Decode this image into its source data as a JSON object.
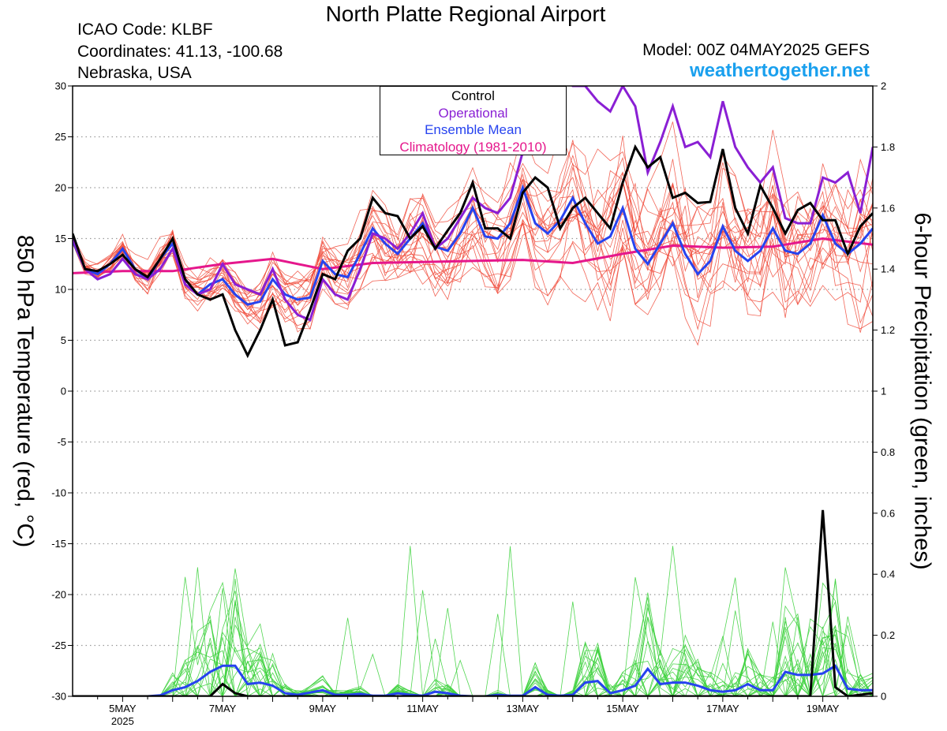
{
  "title": "North Platte Regional Airport",
  "station": {
    "icao": "ICAO Code: KLBF",
    "coordinates": "Coordinates: 41.13, -100.68",
    "region": "Nebraska, USA"
  },
  "model_run": "Model: 00Z 04MAY2025 GEFS",
  "website": "weathertogether.net",
  "chart_data": {
    "type": "line",
    "title": "North Platte Regional Airport",
    "x_unit": "days since 00Z 04MAY2025, 6-hour steps",
    "x_range": [
      0,
      16
    ],
    "x_tick_labels": [
      {
        "x": 1,
        "label": "5MAY",
        "sub": "2025"
      },
      {
        "x": 3,
        "label": "7MAY"
      },
      {
        "x": 5,
        "label": "9MAY"
      },
      {
        "x": 7,
        "label": "11MAY"
      },
      {
        "x": 9,
        "label": "13MAY"
      },
      {
        "x": 11,
        "label": "15MAY"
      },
      {
        "x": 13,
        "label": "17MAY"
      },
      {
        "x": 15,
        "label": "19MAY"
      }
    ],
    "y_left": {
      "label": "850 hPa Temperature (red, °C)",
      "range": [
        -30,
        30
      ],
      "ticks": [
        30,
        25,
        20,
        15,
        10,
        5,
        0,
        -5,
        -10,
        -15,
        -20,
        -25,
        -30
      ]
    },
    "y_right": {
      "label": "6-hour Precipitation (green, inches)",
      "range": [
        0,
        2
      ],
      "ticks": [
        2,
        1.8,
        1.6,
        1.4,
        1.2,
        1,
        0.8,
        0.6,
        0.4,
        0.2,
        0
      ]
    },
    "grid": "dotted horizontal",
    "legend": {
      "position": "top-center",
      "entries": [
        {
          "name": "Control",
          "color": "#000000"
        },
        {
          "name": "Operational",
          "color": "#8a1fd4"
        },
        {
          "name": "Ensemble Mean",
          "color": "#2643ef"
        },
        {
          "name": "Climatology (1981-2010)",
          "color": "#e5178c"
        }
      ]
    },
    "colors": {
      "members_temp": "#f04a3a",
      "members_precip": "#3ed23e",
      "control": "#000000",
      "operational": "#8a1fd4",
      "mean": "#2643ef",
      "climatology": "#e5178c"
    },
    "temperature": {
      "control": [
        [
          0.0,
          15.5
        ],
        [
          0.25,
          12
        ],
        [
          0.5,
          11.8
        ],
        [
          0.75,
          12.5
        ],
        [
          1.0,
          13.4
        ],
        [
          1.25,
          12
        ],
        [
          1.5,
          11.2
        ],
        [
          1.75,
          13
        ],
        [
          2.0,
          15
        ],
        [
          2.25,
          11
        ],
        [
          2.5,
          9.5
        ],
        [
          2.75,
          9
        ],
        [
          3.0,
          9.5
        ],
        [
          3.25,
          6
        ],
        [
          3.5,
          3.5
        ],
        [
          3.75,
          6
        ],
        [
          4.0,
          9
        ],
        [
          4.25,
          4.5
        ],
        [
          4.5,
          4.8
        ],
        [
          4.75,
          8
        ],
        [
          5.0,
          11.5
        ],
        [
          5.25,
          11
        ],
        [
          5.5,
          13.8
        ],
        [
          5.75,
          15
        ],
        [
          6.0,
          19
        ],
        [
          6.25,
          17.5
        ],
        [
          6.5,
          17.2
        ],
        [
          6.75,
          15
        ],
        [
          7.0,
          16.2
        ],
        [
          7.25,
          14
        ],
        [
          7.5,
          15.8
        ],
        [
          7.75,
          17.5
        ],
        [
          8.0,
          20.5
        ],
        [
          8.25,
          16
        ],
        [
          8.5,
          16
        ],
        [
          8.75,
          15
        ],
        [
          9.0,
          19.5
        ],
        [
          9.25,
          21
        ],
        [
          9.5,
          20
        ],
        [
          9.75,
          16
        ],
        [
          10.0,
          18
        ],
        [
          10.25,
          19
        ],
        [
          10.5,
          17.5
        ],
        [
          10.75,
          16
        ],
        [
          11.0,
          20.5
        ],
        [
          11.25,
          24
        ],
        [
          11.5,
          22
        ],
        [
          11.75,
          23
        ],
        [
          12.0,
          19
        ],
        [
          12.25,
          19.5
        ],
        [
          12.5,
          18.5
        ],
        [
          12.75,
          18.6
        ],
        [
          13.0,
          23.8
        ],
        [
          13.25,
          18
        ],
        [
          13.5,
          15.5
        ],
        [
          13.75,
          20.2
        ],
        [
          14.0,
          18
        ],
        [
          14.25,
          15.5
        ],
        [
          14.5,
          17.8
        ],
        [
          14.75,
          18.5
        ],
        [
          15.0,
          16.8
        ],
        [
          15.25,
          16.8
        ],
        [
          15.5,
          13.5
        ],
        [
          15.75,
          16.2
        ],
        [
          16.0,
          17.5
        ]
      ],
      "operational": [
        [
          0.0,
          15
        ],
        [
          0.25,
          12
        ],
        [
          0.5,
          11
        ],
        [
          0.75,
          11.5
        ],
        [
          1.0,
          13
        ],
        [
          1.25,
          11.5
        ],
        [
          1.5,
          11
        ],
        [
          1.75,
          12
        ],
        [
          2.0,
          14
        ],
        [
          2.25,
          10.5
        ],
        [
          2.5,
          9.5
        ],
        [
          2.75,
          10
        ],
        [
          3.0,
          12.5
        ],
        [
          3.25,
          10.5
        ],
        [
          3.5,
          10
        ],
        [
          3.75,
          9.5
        ],
        [
          4.0,
          12
        ],
        [
          4.25,
          9
        ],
        [
          4.5,
          7.5
        ],
        [
          4.75,
          7
        ],
        [
          5.0,
          11
        ],
        [
          5.25,
          9.5
        ],
        [
          5.5,
          9
        ],
        [
          5.75,
          12
        ],
        [
          6.0,
          15.5
        ],
        [
          6.25,
          15
        ],
        [
          6.5,
          14
        ],
        [
          6.75,
          15.5
        ],
        [
          7.0,
          17.5
        ],
        [
          7.25,
          14
        ],
        [
          7.5,
          15
        ],
        [
          7.75,
          17
        ],
        [
          8.0,
          19
        ],
        [
          8.25,
          18
        ],
        [
          8.5,
          17.5
        ],
        [
          8.75,
          19
        ],
        [
          9.0,
          23.5
        ],
        [
          9.25,
          27
        ],
        [
          9.5,
          29
        ],
        [
          9.75,
          31
        ],
        [
          10.0,
          30
        ],
        [
          10.25,
          30
        ],
        [
          10.5,
          28.5
        ],
        [
          10.75,
          27.5
        ],
        [
          11.0,
          30
        ],
        [
          11.25,
          28
        ],
        [
          11.5,
          21.5
        ],
        [
          11.75,
          24.5
        ],
        [
          12.0,
          28
        ],
        [
          12.25,
          24
        ],
        [
          12.5,
          24.5
        ],
        [
          12.75,
          23
        ],
        [
          13.0,
          28.5
        ],
        [
          13.25,
          24
        ],
        [
          13.5,
          22
        ],
        [
          13.75,
          20.5
        ],
        [
          14.0,
          22
        ],
        [
          14.25,
          17
        ],
        [
          14.5,
          16.5
        ],
        [
          14.75,
          16.5
        ],
        [
          15.0,
          21
        ],
        [
          15.25,
          20.5
        ],
        [
          15.5,
          21.5
        ],
        [
          15.75,
          17.5
        ],
        [
          16.0,
          24
        ]
      ],
      "mean": [
        [
          0.0,
          14.8
        ],
        [
          0.25,
          12
        ],
        [
          0.5,
          11.5
        ],
        [
          0.75,
          12.5
        ],
        [
          1.0,
          14
        ],
        [
          1.25,
          12
        ],
        [
          1.5,
          11
        ],
        [
          1.75,
          13
        ],
        [
          2.0,
          14.5
        ],
        [
          2.25,
          10.5
        ],
        [
          2.5,
          9.5
        ],
        [
          2.75,
          10.5
        ],
        [
          3.0,
          11
        ],
        [
          3.25,
          9.5
        ],
        [
          3.5,
          8.5
        ],
        [
          3.75,
          8.8
        ],
        [
          4.0,
          11
        ],
        [
          4.25,
          9.5
        ],
        [
          4.5,
          9
        ],
        [
          4.75,
          9.2
        ],
        [
          5.0,
          12.8
        ],
        [
          5.25,
          11.5
        ],
        [
          5.5,
          11.2
        ],
        [
          5.75,
          13.5
        ],
        [
          6.0,
          16
        ],
        [
          6.25,
          14.5
        ],
        [
          6.5,
          13.5
        ],
        [
          6.75,
          15
        ],
        [
          7.0,
          16.5
        ],
        [
          7.25,
          14.2
        ],
        [
          7.5,
          13.8
        ],
        [
          7.75,
          15.5
        ],
        [
          8.0,
          18
        ],
        [
          8.25,
          15.2
        ],
        [
          8.5,
          15
        ],
        [
          8.75,
          16.5
        ],
        [
          9.0,
          20
        ],
        [
          9.25,
          16.5
        ],
        [
          9.5,
          15.5
        ],
        [
          9.75,
          16.8
        ],
        [
          10.0,
          19
        ],
        [
          10.25,
          16.5
        ],
        [
          10.5,
          14.5
        ],
        [
          10.75,
          15.2
        ],
        [
          11.0,
          18
        ],
        [
          11.25,
          14
        ],
        [
          11.5,
          12.5
        ],
        [
          11.75,
          14.5
        ],
        [
          12.0,
          16.5
        ],
        [
          12.25,
          13.5
        ],
        [
          12.5,
          11.5
        ],
        [
          12.75,
          12.8
        ],
        [
          13.0,
          16.2
        ],
        [
          13.25,
          13.8
        ],
        [
          13.5,
          12.8
        ],
        [
          13.75,
          13.8
        ],
        [
          14.0,
          16
        ],
        [
          14.25,
          13.8
        ],
        [
          14.5,
          13.5
        ],
        [
          14.75,
          14.5
        ],
        [
          15.0,
          17.3
        ],
        [
          15.25,
          14.5
        ],
        [
          15.5,
          13.5
        ],
        [
          15.75,
          14.5
        ],
        [
          16.0,
          16
        ]
      ],
      "climatology": [
        [
          0.0,
          11.6
        ],
        [
          1.0,
          11.8
        ],
        [
          2.0,
          11.8
        ],
        [
          3.0,
          12.5
        ],
        [
          4.0,
          13
        ],
        [
          5.0,
          12
        ],
        [
          6.0,
          12.6
        ],
        [
          7.0,
          12.7
        ],
        [
          8.0,
          12.8
        ],
        [
          9.0,
          12.9
        ],
        [
          10.0,
          12.6
        ],
        [
          11.0,
          13.5
        ],
        [
          12.0,
          14.3
        ],
        [
          13.0,
          14.1
        ],
        [
          14.0,
          14.2
        ],
        [
          15.0,
          15
        ],
        [
          16.0,
          14.4
        ]
      ]
    },
    "precipitation": {
      "control": [
        [
          0.0,
          0
        ],
        [
          2.75,
          0
        ],
        [
          3.0,
          0.04
        ],
        [
          3.25,
          0.01
        ],
        [
          3.5,
          0
        ],
        [
          14.75,
          0
        ],
        [
          15.0,
          0.61
        ],
        [
          15.25,
          0.03
        ],
        [
          15.5,
          0
        ],
        [
          16.0,
          0.01
        ]
      ],
      "mean": [
        [
          0.0,
          0
        ],
        [
          1.5,
          0
        ],
        [
          1.75,
          0.003
        ],
        [
          2.0,
          0.02
        ],
        [
          2.25,
          0.03
        ],
        [
          2.5,
          0.05
        ],
        [
          2.75,
          0.08
        ],
        [
          3.0,
          0.1
        ],
        [
          3.25,
          0.1
        ],
        [
          3.5,
          0.04
        ],
        [
          3.75,
          0.045
        ],
        [
          4.0,
          0.035
        ],
        [
          4.25,
          0.01
        ],
        [
          4.5,
          0.005
        ],
        [
          5.0,
          0.02
        ],
        [
          5.25,
          0.005
        ],
        [
          5.5,
          0.005
        ],
        [
          5.75,
          0.008
        ],
        [
          6.0,
          0.002
        ],
        [
          6.25,
          0.002
        ],
        [
          6.5,
          0.01
        ],
        [
          6.75,
          0.005
        ],
        [
          7.0,
          0.002
        ],
        [
          7.25,
          0.015
        ],
        [
          7.5,
          0.01
        ],
        [
          7.75,
          0.002
        ],
        [
          8.0,
          0
        ],
        [
          8.25,
          0
        ],
        [
          8.5,
          0.005
        ],
        [
          8.75,
          0.002
        ],
        [
          9.0,
          0.002
        ],
        [
          9.25,
          0.03
        ],
        [
          9.5,
          0.005
        ],
        [
          9.75,
          0.002
        ],
        [
          10.0,
          0.005
        ],
        [
          10.25,
          0.045
        ],
        [
          10.5,
          0.05
        ],
        [
          10.75,
          0.01
        ],
        [
          11.0,
          0.02
        ],
        [
          11.25,
          0.035
        ],
        [
          11.5,
          0.09
        ],
        [
          11.75,
          0.04
        ],
        [
          12.0,
          0.045
        ],
        [
          12.25,
          0.045
        ],
        [
          12.5,
          0.035
        ],
        [
          12.75,
          0.02
        ],
        [
          13.0,
          0.015
        ],
        [
          13.25,
          0.02
        ],
        [
          13.5,
          0.04
        ],
        [
          13.75,
          0.02
        ],
        [
          14.0,
          0.02
        ],
        [
          14.25,
          0.08
        ],
        [
          14.5,
          0.07
        ],
        [
          14.75,
          0.07
        ],
        [
          15.0,
          0.075
        ],
        [
          15.25,
          0.1
        ],
        [
          15.5,
          0.025
        ],
        [
          15.75,
          0.02
        ],
        [
          16.0,
          0.02
        ]
      ]
    }
  }
}
